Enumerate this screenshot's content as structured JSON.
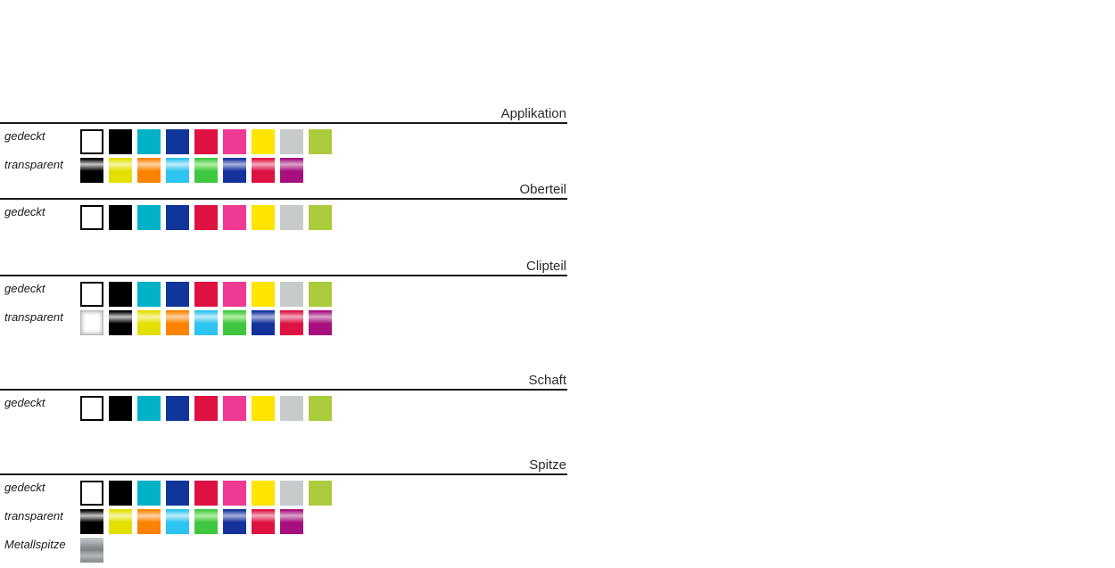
{
  "page": {
    "background": "#ffffff",
    "rule_color": "#1a1a1a"
  },
  "sections": [
    {
      "id": "applikation",
      "title": "Applikation",
      "rows": [
        {
          "label": "gedeckt",
          "palette": "gedeckt"
        },
        {
          "label": "transparent",
          "palette": "transparent_8"
        }
      ]
    },
    {
      "id": "oberteil",
      "title": "Oberteil",
      "rows": [
        {
          "label": "gedeckt",
          "palette": "gedeckt"
        }
      ]
    },
    {
      "id": "clipteil",
      "title": "Clipteil",
      "rows": [
        {
          "label": "gedeckt",
          "palette": "gedeckt"
        },
        {
          "label": "transparent",
          "palette": "transparent_9"
        }
      ]
    },
    {
      "id": "schaft",
      "title": "Schaft",
      "rows": [
        {
          "label": "gedeckt",
          "palette": "gedeckt"
        }
      ]
    },
    {
      "id": "spitze",
      "title": "Spitze",
      "rows": [
        {
          "label": "gedeckt",
          "palette": "gedeckt"
        },
        {
          "label": "transparent",
          "palette": "transparent_8"
        },
        {
          "label": "Metallspitze",
          "palette": "metallspitze"
        }
      ]
    }
  ],
  "palettes": {
    "gedeckt": [
      {
        "name": "weiss",
        "hex": "#ffffff",
        "style": "solid",
        "border": "#000000"
      },
      {
        "name": "schwarz",
        "hex": "#000000",
        "style": "solid"
      },
      {
        "name": "cyan",
        "hex": "#00b2c8",
        "style": "solid"
      },
      {
        "name": "blau",
        "hex": "#10359b",
        "style": "solid"
      },
      {
        "name": "rot",
        "hex": "#dd1242",
        "style": "solid"
      },
      {
        "name": "pink",
        "hex": "#ee3a93",
        "style": "solid"
      },
      {
        "name": "gelb",
        "hex": "#fde500",
        "style": "solid"
      },
      {
        "name": "grau",
        "hex": "#c8cbcb",
        "style": "solid"
      },
      {
        "name": "hellgruen",
        "hex": "#aacc3c",
        "style": "solid"
      }
    ],
    "transparent_8": [
      {
        "name": "schwarz-transparent",
        "hex": "#000000",
        "highlight": "#c6c6c6",
        "style": "gradient"
      },
      {
        "name": "gelb-transparent",
        "hex": "#e3df00",
        "highlight": "#f6f4a2",
        "style": "gradient"
      },
      {
        "name": "orange-transparent",
        "hex": "#fc8200",
        "highlight": "#ffd2a2",
        "style": "gradient"
      },
      {
        "name": "cyan-transparent",
        "hex": "#2cc4f0",
        "highlight": "#c2ecfa",
        "style": "gradient"
      },
      {
        "name": "gruen-transparent",
        "hex": "#3fc83f",
        "highlight": "#b2eea4",
        "style": "gradient"
      },
      {
        "name": "blau-transparent",
        "hex": "#14319c",
        "highlight": "#a8b2dc",
        "style": "gradient"
      },
      {
        "name": "rot-transparent",
        "hex": "#dd1242",
        "highlight": "#f4a8bc",
        "style": "gradient"
      },
      {
        "name": "violett-transparent",
        "hex": "#a80f7e",
        "highlight": "#d8a6ca",
        "style": "gradient"
      }
    ],
    "transparent_9": [
      {
        "name": "klar-transparent",
        "hex": "#ffffff",
        "style": "clear"
      },
      {
        "name": "schwarz-transparent",
        "hex": "#000000",
        "highlight": "#c6c6c6",
        "style": "gradient"
      },
      {
        "name": "gelb-transparent",
        "hex": "#e3df00",
        "highlight": "#f6f4a2",
        "style": "gradient"
      },
      {
        "name": "orange-transparent",
        "hex": "#fc8200",
        "highlight": "#ffd2a2",
        "style": "gradient"
      },
      {
        "name": "cyan-transparent",
        "hex": "#2cc4f0",
        "highlight": "#c2ecfa",
        "style": "gradient"
      },
      {
        "name": "gruen-transparent",
        "hex": "#3fc83f",
        "highlight": "#b2eea4",
        "style": "gradient"
      },
      {
        "name": "blau-transparent",
        "hex": "#14319c",
        "highlight": "#a8b2dc",
        "style": "gradient"
      },
      {
        "name": "rot-transparent",
        "hex": "#dd1242",
        "highlight": "#f4a8bc",
        "style": "gradient"
      },
      {
        "name": "violett-transparent",
        "hex": "#a80f7e",
        "highlight": "#d8a6ca",
        "style": "gradient"
      }
    ],
    "metallspitze": [
      {
        "name": "metall",
        "hex": "#94989c",
        "style": "metal"
      }
    ]
  }
}
